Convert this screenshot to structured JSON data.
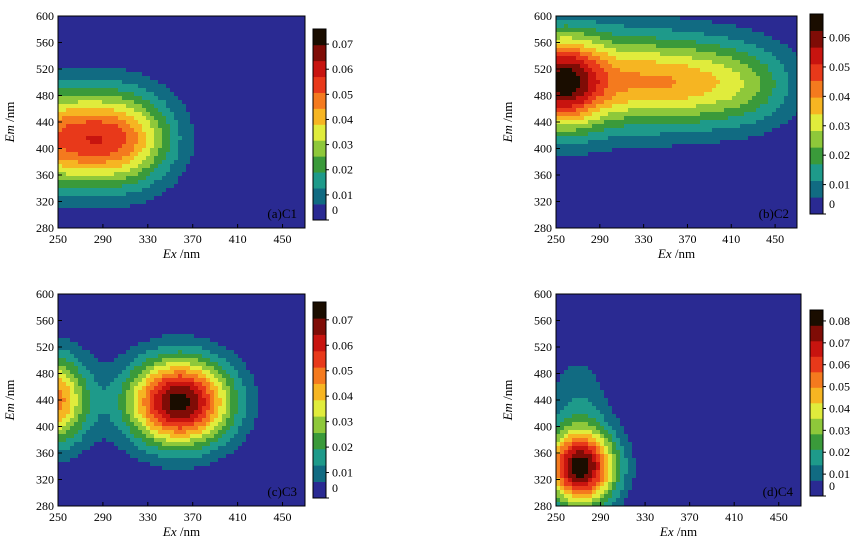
{
  "chart_data": [
    {
      "type": "heatmap",
      "panel_label": "(a)C1",
      "xlabel_var": "Ex",
      "xlabel_unit": " /nm",
      "ylabel_var": "Em",
      "ylabel_unit": " /nm",
      "xlim": [
        250,
        470
      ],
      "ylim": [
        280,
        600
      ],
      "xticks": [
        "250",
        "290",
        "330",
        "370",
        "410",
        "450"
      ],
      "yticks": [
        "280",
        "320",
        "360",
        "400",
        "440",
        "480",
        "520",
        "560",
        "600"
      ],
      "colorbar_ticks": [
        "0",
        "0.01",
        "0.02",
        "0.03",
        "0.04",
        "0.05",
        "0.06",
        "0.07"
      ],
      "colorbar_max": 0.076,
      "peaks": [
        {
          "ex": 250,
          "em": 415,
          "sx": 38,
          "sy": 52,
          "value": 0.045
        },
        {
          "ex": 310,
          "em": 415,
          "sx": 32,
          "sy": 50,
          "value": 0.038
        }
      ]
    },
    {
      "type": "heatmap",
      "panel_label": "(b)C2",
      "xlabel_var": "Ex",
      "xlabel_unit": " /nm",
      "ylabel_var": "Em",
      "ylabel_unit": " /nm",
      "xlim": [
        250,
        470
      ],
      "ylim": [
        280,
        600
      ],
      "xticks": [
        "250",
        "290",
        "330",
        "370",
        "410",
        "450"
      ],
      "yticks": [
        "280",
        "320",
        "360",
        "400",
        "440",
        "480",
        "520",
        "560",
        "600"
      ],
      "colorbar_ticks": [
        "0",
        "0.01",
        "0.02",
        "0.03",
        "0.04",
        "0.05",
        "0.06"
      ],
      "colorbar_max": 0.068,
      "peaks": [
        {
          "ex": 252,
          "em": 500,
          "sx": 28,
          "sy": 50,
          "value": 0.055
        },
        {
          "ex": 300,
          "em": 505,
          "sx": 40,
          "sy": 55,
          "value": 0.018
        },
        {
          "ex": 365,
          "em": 500,
          "sx": 50,
          "sy": 48,
          "value": 0.033
        },
        {
          "ex": 430,
          "em": 495,
          "sx": 32,
          "sy": 44,
          "value": 0.011
        }
      ]
    },
    {
      "type": "heatmap",
      "panel_label": "(c)C3",
      "xlabel_var": "Ex",
      "xlabel_unit": " /nm",
      "ylabel_var": "Em",
      "ylabel_unit": " /nm",
      "xlim": [
        250,
        470
      ],
      "ylim": [
        280,
        600
      ],
      "xticks": [
        "250",
        "290",
        "330",
        "370",
        "410",
        "450"
      ],
      "yticks": [
        "280",
        "320",
        "360",
        "400",
        "440",
        "480",
        "520",
        "560",
        "600"
      ],
      "colorbar_ticks": [
        "0",
        "0.01",
        "0.02",
        "0.03",
        "0.04",
        "0.05",
        "0.06",
        "0.07"
      ],
      "colorbar_max": 0.077,
      "peaks": [
        {
          "ex": 245,
          "em": 440,
          "sx": 22,
          "sy": 48,
          "value": 0.05
        },
        {
          "ex": 358,
          "em": 437,
          "sx": 32,
          "sy": 46,
          "value": 0.074
        }
      ]
    },
    {
      "type": "heatmap",
      "panel_label": "(d)C4",
      "xlabel_var": "Ex",
      "xlabel_unit": " /nm",
      "ylabel_var": "Em",
      "ylabel_unit": " /nm",
      "xlim": [
        250,
        470
      ],
      "ylim": [
        280,
        600
      ],
      "xticks": [
        "250",
        "290",
        "330",
        "370",
        "410",
        "450"
      ],
      "yticks": [
        "280",
        "320",
        "360",
        "400",
        "440",
        "480",
        "520",
        "560",
        "600"
      ],
      "colorbar_ticks": [
        "0",
        "0.01",
        "0.02",
        "0.03",
        "0.04",
        "0.05",
        "0.06",
        "0.07",
        "0.08"
      ],
      "colorbar_max": 0.085,
      "peaks": [
        {
          "ex": 272,
          "em": 338,
          "sx": 22,
          "sy": 40,
          "value": 0.082
        },
        {
          "ex": 270,
          "em": 440,
          "sx": 20,
          "sy": 50,
          "value": 0.012
        }
      ]
    }
  ]
}
